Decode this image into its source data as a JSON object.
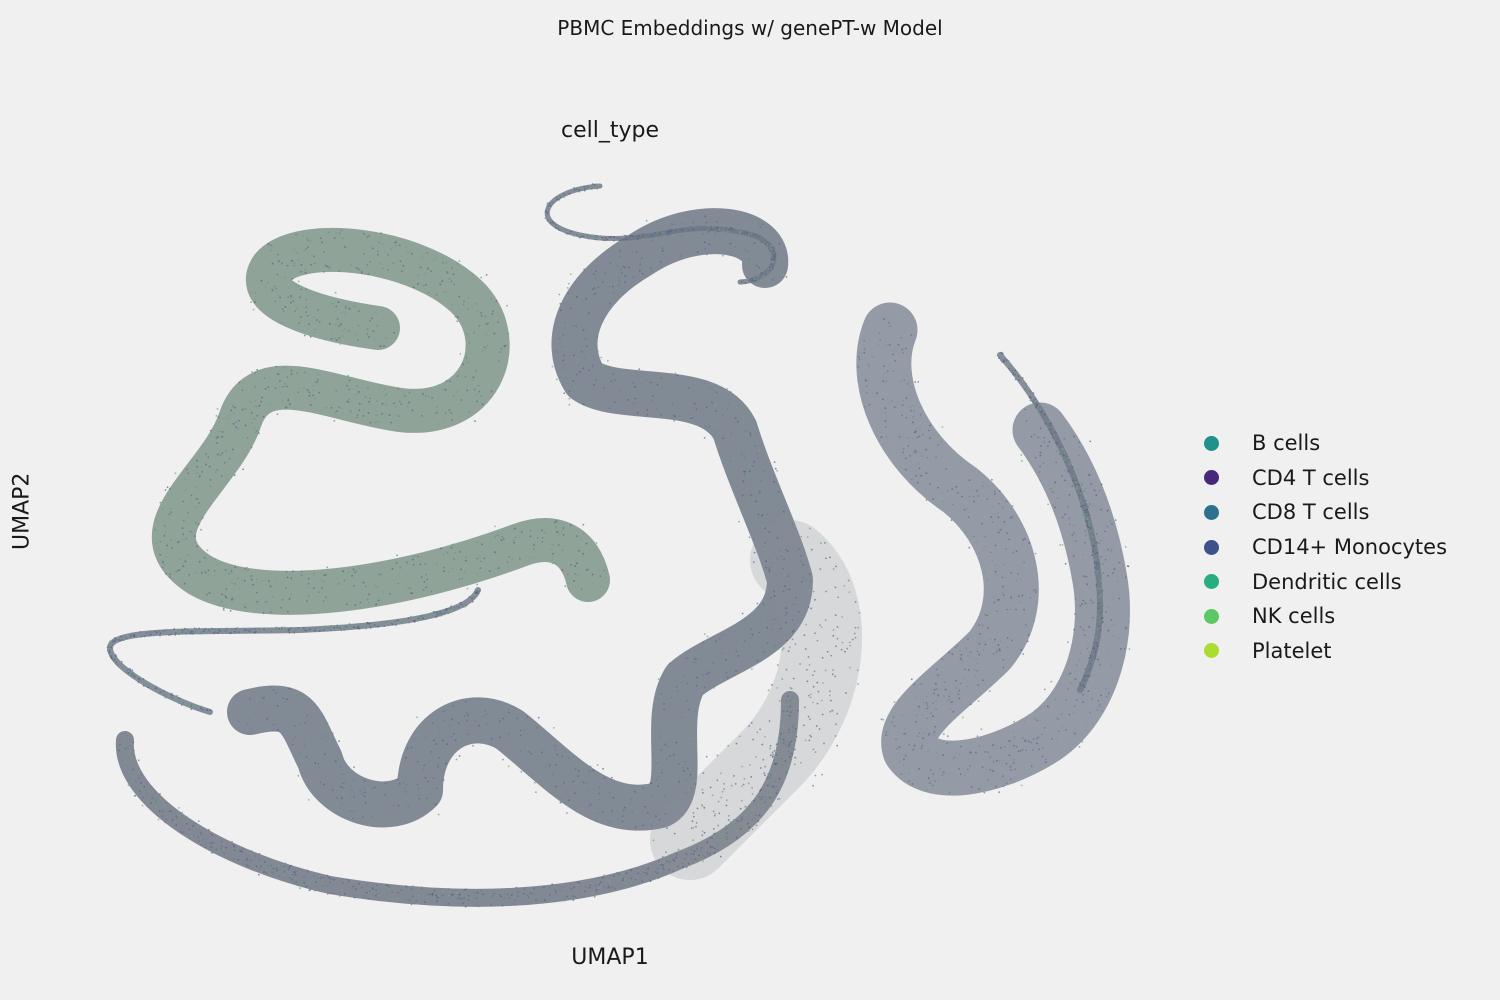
{
  "suptitle": "PBMC Embeddings w/ genePT-w Model",
  "chart_data": {
    "type": "scatter",
    "title": "cell_type",
    "xlabel": "UMAP1",
    "ylabel": "UMAP2",
    "grid": false,
    "legend_placement": "right",
    "series": [
      {
        "name": "B cells",
        "color": "#21918c"
      },
      {
        "name": "CD4 T cells",
        "color": "#482878"
      },
      {
        "name": "CD8 T cells",
        "color": "#2c728e"
      },
      {
        "name": "CD14+ Monocytes",
        "color": "#3b528b"
      },
      {
        "name": "Dendritic cells",
        "color": "#27ad81"
      },
      {
        "name": "NK cells",
        "color": "#5cc863"
      },
      {
        "name": "Platelet",
        "color": "#aadc32"
      }
    ]
  }
}
